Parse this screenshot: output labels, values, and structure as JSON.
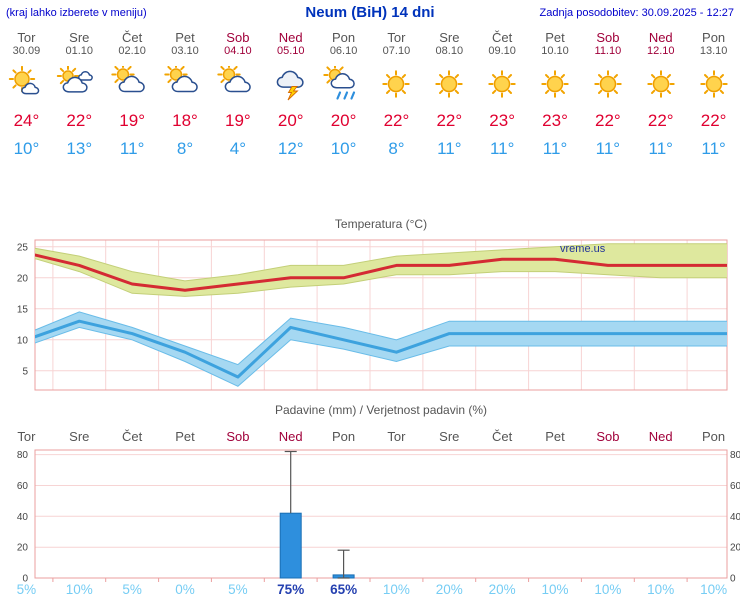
{
  "header": {
    "left_note": "(kraj lahko izberete v meniju)",
    "title": "Neum (BiH) 14 dni",
    "updated": "Zadnja posodobitev: 30.09.2025 - 12:27"
  },
  "colors": {
    "header_blue": "#0000cc",
    "title_blue": "#0033bb",
    "weekday": "#555555",
    "weekend": "#a0003a",
    "tmax": "#e00030",
    "tmin": "#2f9ce8",
    "prob_low": "#76cdf4",
    "prob_high": "#2440b0",
    "grid_pink": "#f7d4d4",
    "frame_pink": "#eb9f9f"
  },
  "days": [
    {
      "name": "Tor",
      "date": "30.09",
      "weekend": false,
      "icon": "sun-with-cloud",
      "tmax": "24°",
      "tmin": "10°"
    },
    {
      "name": "Sre",
      "date": "01.10",
      "weekend": false,
      "icon": "cloudy",
      "tmax": "22°",
      "tmin": "13°"
    },
    {
      "name": "Čet",
      "date": "02.10",
      "weekend": false,
      "icon": "mostly-cloudy",
      "tmax": "19°",
      "tmin": "11°"
    },
    {
      "name": "Pet",
      "date": "03.10",
      "weekend": false,
      "icon": "mostly-cloudy",
      "tmax": "18°",
      "tmin": "8°"
    },
    {
      "name": "Sob",
      "date": "04.10",
      "weekend": true,
      "icon": "mostly-cloudy",
      "tmax": "19°",
      "tmin": "4°"
    },
    {
      "name": "Ned",
      "date": "05.10",
      "weekend": true,
      "icon": "thunderstorm",
      "tmax": "20°",
      "tmin": "12°"
    },
    {
      "name": "Pon",
      "date": "06.10",
      "weekend": false,
      "icon": "rain-showers-sun",
      "tmax": "20°",
      "tmin": "10°"
    },
    {
      "name": "Tor",
      "date": "07.10",
      "weekend": false,
      "icon": "sunny",
      "tmax": "22°",
      "tmin": "8°"
    },
    {
      "name": "Sre",
      "date": "08.10",
      "weekend": false,
      "icon": "sunny",
      "tmax": "22°",
      "tmin": "11°"
    },
    {
      "name": "Čet",
      "date": "09.10",
      "weekend": false,
      "icon": "sunny",
      "tmax": "23°",
      "tmin": "11°"
    },
    {
      "name": "Pet",
      "date": "10.10",
      "weekend": false,
      "icon": "sunny",
      "tmax": "23°",
      "tmin": "11°"
    },
    {
      "name": "Sob",
      "date": "11.10",
      "weekend": true,
      "icon": "sunny",
      "tmax": "22°",
      "tmin": "11°"
    },
    {
      "name": "Ned",
      "date": "12.10",
      "weekend": true,
      "icon": "sunny",
      "tmax": "22°",
      "tmin": "11°"
    },
    {
      "name": "Pon",
      "date": "13.10",
      "weekend": false,
      "icon": "sunny",
      "tmax": "22°",
      "tmin": "11°"
    }
  ],
  "chart_data": [
    {
      "type": "line",
      "title": "Temperatura (°C)",
      "watermark": "vreme.us",
      "categories": [
        "Tor",
        "Sre",
        "Čet",
        "Pet",
        "Sob",
        "Ned",
        "Pon",
        "Tor",
        "Sre",
        "Čet",
        "Pet",
        "Sob",
        "Ned",
        "Pon"
      ],
      "ylim": [
        1.9,
        26.1
      ],
      "yticks": [
        5,
        10,
        15,
        20,
        25
      ],
      "grid": true,
      "legend": "none",
      "series": [
        {
          "name": "max-temperature",
          "color": "#d42a33",
          "band_color": "#dee89e",
          "band_edge": "#c3cf78",
          "values": [
            24,
            22,
            19,
            18,
            19,
            20,
            20,
            22,
            22,
            23,
            23,
            22,
            22,
            22
          ],
          "band_hi": [
            25,
            23.5,
            21,
            19.5,
            20.5,
            22,
            22,
            23.5,
            24,
            24.5,
            25,
            25.5,
            25.5,
            25.5
          ],
          "band_lo": [
            23.5,
            21,
            17.5,
            17,
            17.5,
            18.5,
            19,
            20.5,
            20.5,
            21,
            21,
            20.5,
            20,
            20
          ]
        },
        {
          "name": "min-temperature",
          "color": "#3da2de",
          "band_color": "#a5d8f2",
          "band_edge": "#69bce8",
          "values": [
            10,
            13,
            11,
            8,
            4,
            12,
            10,
            8,
            11,
            11,
            11,
            11,
            11,
            11
          ],
          "band_hi": [
            11,
            14.5,
            12,
            9,
            6,
            13.5,
            12,
            10,
            13,
            13,
            13,
            13,
            13,
            13
          ],
          "band_lo": [
            9,
            12,
            10,
            6.5,
            2.5,
            10,
            8.5,
            6.5,
            9,
            9,
            9,
            9,
            9,
            9
          ]
        }
      ]
    },
    {
      "type": "bar",
      "title": "Padavine (mm) / Verjetnost padavin (%)",
      "categories": [
        "Tor",
        "Sre",
        "Čet",
        "Pet",
        "Sob",
        "Ned",
        "Pon",
        "Tor",
        "Sre",
        "Čet",
        "Pet",
        "Sob",
        "Ned",
        "Pon"
      ],
      "ylim": [
        0,
        83
      ],
      "yticks": [
        0,
        20,
        40,
        60,
        80
      ],
      "bar_color": "#2e8fdd",
      "bar_edge": "#1a6fb5",
      "values": [
        0,
        0,
        0,
        0,
        0,
        42,
        2,
        0,
        0,
        0,
        0,
        0,
        0,
        0
      ],
      "whiskers": [
        {
          "index": 5,
          "from": 42,
          "to": 82,
          "bottom_cap": false
        },
        {
          "index": 6,
          "from": 0,
          "to": 18,
          "bottom_cap": true
        }
      ],
      "probabilities": [
        {
          "label": "5%",
          "high": false
        },
        {
          "label": "10%",
          "high": false
        },
        {
          "label": "5%",
          "high": false
        },
        {
          "label": "0%",
          "high": false
        },
        {
          "label": "5%",
          "high": false
        },
        {
          "label": "75%",
          "high": true
        },
        {
          "label": "65%",
          "high": true
        },
        {
          "label": "10%",
          "high": false
        },
        {
          "label": "20%",
          "high": false
        },
        {
          "label": "20%",
          "high": false
        },
        {
          "label": "10%",
          "high": false
        },
        {
          "label": "10%",
          "high": false
        },
        {
          "label": "10%",
          "high": false
        },
        {
          "label": "10%",
          "high": false
        }
      ]
    }
  ]
}
